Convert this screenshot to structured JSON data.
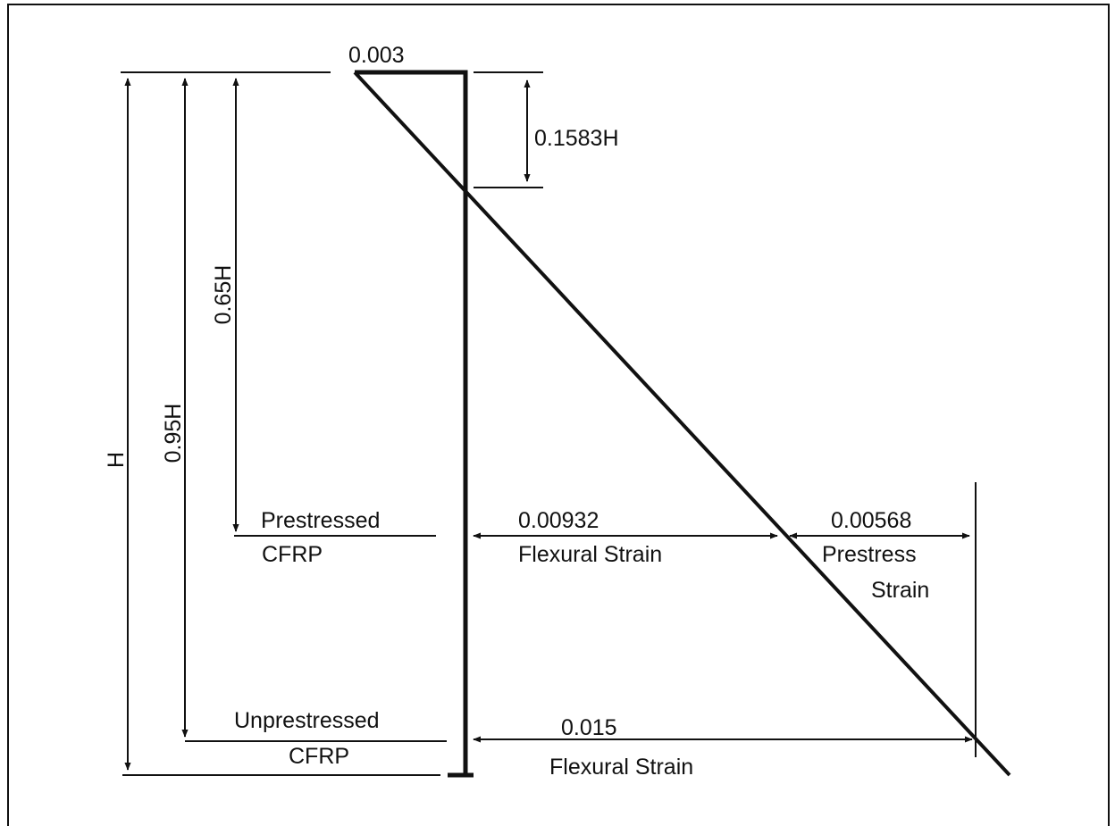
{
  "top_strain": "0.003",
  "depths": {
    "neutral_axis": "0.1583H",
    "total": "H",
    "unprestressed": "0.95H",
    "prestressed": "0.65H"
  },
  "prestressed_layer": {
    "label_line1": "Prestressed",
    "label_line2": "CFRP",
    "flexural_strain": "0.00932",
    "flexural_label": "Flexural Strain",
    "prestress_strain": "0.00568",
    "prestress_label_line1": "Prestress",
    "prestress_label_line2": "Strain"
  },
  "unprestressed_layer": {
    "label_line1": "Unprestressed",
    "label_line2": "CFRP",
    "flexural_strain": "0.015",
    "flexural_label": "Flexural Strain"
  }
}
